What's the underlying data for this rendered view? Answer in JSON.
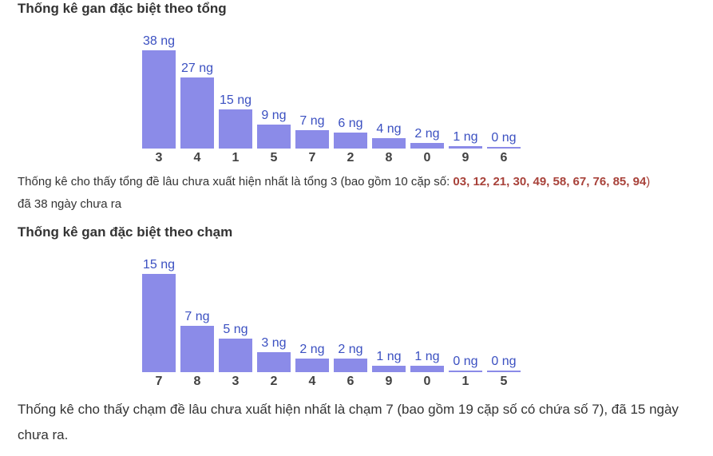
{
  "colors": {
    "bar": "#8b8be8",
    "value_label": "#3b50c1",
    "category_label": "#414141",
    "title": "#333333",
    "body_text": "#333333",
    "highlight_red": "#a8423a",
    "background": "#ffffff"
  },
  "section1": {
    "title": "Thống kê gan đặc biệt theo tổng",
    "note_prefix": "Thống kê cho thấy tổng đề lâu chưa xuất hiện nhất là tổng 3 (bao gồm 10 cặp số: ",
    "note_numbers": "03, 12, 21, 30, 49, 58, 67, 76, 85, 94",
    "note_close": ")",
    "note_tail": " đã 38 ngày chưa ra"
  },
  "section2": {
    "title": "Thống kê gan đặc biệt theo chạm",
    "note": "Thống kê cho thấy chạm đề lâu chưa xuất hiện nhất là chạm 7 (bao gồm 19 cặp số có chứa số 7), đã 15 ngày chưa ra."
  },
  "chart_data": [
    {
      "type": "bar",
      "title": "Thống kê gan đặc biệt theo tổng",
      "categories": [
        "3",
        "4",
        "1",
        "5",
        "7",
        "2",
        "8",
        "0",
        "9",
        "6"
      ],
      "values": [
        38,
        27,
        15,
        9,
        7,
        6,
        4,
        2,
        1,
        0
      ],
      "unit": "ng",
      "value_label_format": "{value} ng",
      "xlabel": "",
      "ylabel": "",
      "ylim": [
        0,
        38
      ],
      "grid": false,
      "legend": false,
      "bar_color": "#8b8be8",
      "sorted": "descending"
    },
    {
      "type": "bar",
      "title": "Thống kê gan đặc biệt theo chạm",
      "categories": [
        "7",
        "8",
        "3",
        "2",
        "4",
        "6",
        "9",
        "0",
        "1",
        "5"
      ],
      "values": [
        15,
        7,
        5,
        3,
        2,
        2,
        1,
        1,
        0,
        0
      ],
      "unit": "ng",
      "value_label_format": "{value} ng",
      "xlabel": "",
      "ylabel": "",
      "ylim": [
        0,
        15
      ],
      "grid": false,
      "legend": false,
      "bar_color": "#8b8be8",
      "sorted": "descending"
    }
  ]
}
